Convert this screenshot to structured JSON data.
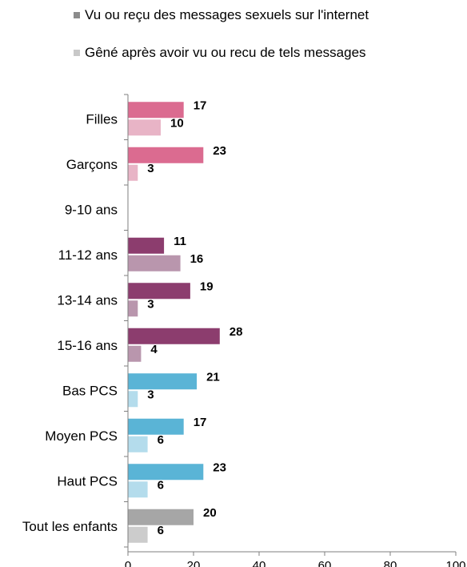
{
  "chart_data": {
    "type": "bar",
    "orientation": "horizontal",
    "categories": [
      "Filles",
      "Garçons",
      "9-10 ans",
      "11-12 ans",
      "13-14 ans",
      "15-16 ans",
      "Bas PCS",
      "Moyen PCS",
      "Haut PCS",
      "Tout les enfants"
    ],
    "series": [
      {
        "name": "Vu ou reçu des messages sexuels sur l'internet",
        "values": [
          17,
          23,
          null,
          11,
          19,
          28,
          21,
          17,
          23,
          20
        ],
        "colors": [
          "#db6b90",
          "#db6b90",
          "#8c3d6e",
          "#8c3d6e",
          "#8c3d6e",
          "#8c3d6e",
          "#5ab4d6",
          "#5ab4d6",
          "#5ab4d6",
          "#a6a6a6"
        ]
      },
      {
        "name": "Gêné après avoir vu ou recu de tels messages",
        "values": [
          10,
          3,
          null,
          16,
          3,
          4,
          3,
          6,
          6,
          6
        ],
        "colors": [
          "#e8b4c6",
          "#e8b4c6",
          "#b996ad",
          "#b996ad",
          "#b996ad",
          "#b996ad",
          "#b4dcec",
          "#b4dcec",
          "#b4dcec",
          "#cccccc"
        ]
      }
    ],
    "xlim": [
      0,
      100
    ],
    "xticks": [
      0,
      20,
      40,
      60,
      80,
      100
    ],
    "legend_colors": [
      "#8c8c8c",
      "#c8c8c8"
    ],
    "legend_position": "top",
    "grid": false,
    "data_labels": true
  }
}
